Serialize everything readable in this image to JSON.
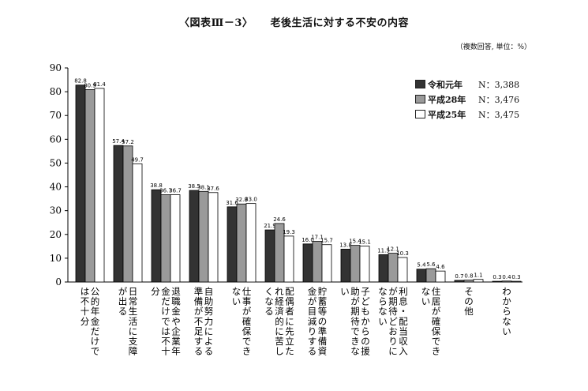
{
  "title_number": "〈図表Ⅲ－3〉",
  "title": "老後生活に対する不安の内容",
  "units": "（複数回答, 単位：%）",
  "colors": {
    "s1": "#333333",
    "s2": "#9a9a9a",
    "s3": "#ffffff"
  },
  "chart_data": {
    "type": "bar",
    "ylim": [
      0,
      90
    ],
    "yticks": [
      0,
      10,
      20,
      30,
      40,
      50,
      60,
      70,
      80,
      90
    ],
    "categories": [
      "公的年金だけでは不十分",
      "日常生活に支障が出る",
      "退職金や企業年金だけでは不十分",
      "自助努力による準備が不足する",
      "仕事が確保できない",
      "配偶者に先立たれ経済的に苦しくなる",
      "貯蓄等の準備資金が目減りする",
      "子どもからの援助が期待できない",
      "利息・配当収入が期待どおりにならない",
      "住居が確保できない",
      "その他",
      "わからない"
    ],
    "series": [
      {
        "name": "令和元年",
        "n": "N：3,388",
        "values": [
          82.8,
          57.4,
          38.8,
          38.5,
          31.6,
          21.9,
          16.0,
          13.8,
          11.5,
          5.4,
          0.7,
          0.3
        ]
      },
      {
        "name": "平成28年",
        "n": "N：3,476",
        "values": [
          80.9,
          57.2,
          36.7,
          38.1,
          32.8,
          24.6,
          17.1,
          15.4,
          12.1,
          5.6,
          0.8,
          0.4
        ]
      },
      {
        "name": "平成25年",
        "n": "N：3,475",
        "values": [
          81.4,
          49.7,
          36.7,
          37.6,
          33.0,
          19.3,
          15.7,
          15.1,
          10.3,
          4.6,
          1.1,
          0.3
        ]
      }
    ],
    "legend_position": "top-right"
  }
}
